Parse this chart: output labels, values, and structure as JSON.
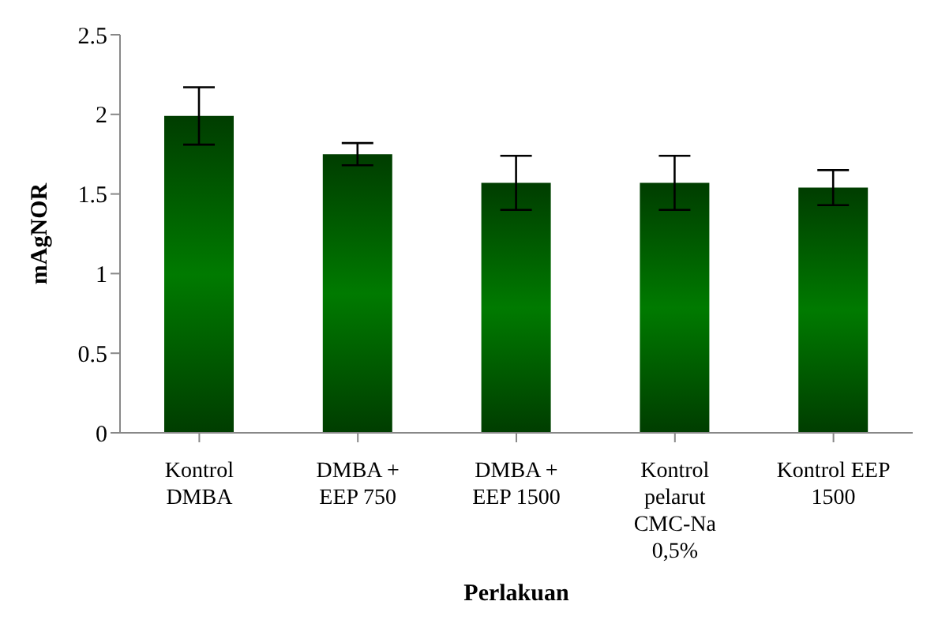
{
  "chart_data": {
    "type": "bar",
    "xlabel": "Perlakuan",
    "ylabel": "mAgNOR",
    "categories": [
      "Kontrol DMBA",
      "DMBA + EEP 750",
      "DMBA + EEP 1500",
      "Kontrol pelarut CMC-Na 0,5%",
      "Kontrol EEP 1500"
    ],
    "values": [
      1.99,
      1.75,
      1.57,
      1.57,
      1.54
    ],
    "errors": [
      0.18,
      0.07,
      0.17,
      0.17,
      0.11
    ],
    "color": "#007a00",
    "ylim": [
      0,
      2.5
    ],
    "yticks": [
      0,
      0.5,
      1,
      1.5,
      2,
      2.5
    ],
    "grid": false,
    "legend": false
  }
}
